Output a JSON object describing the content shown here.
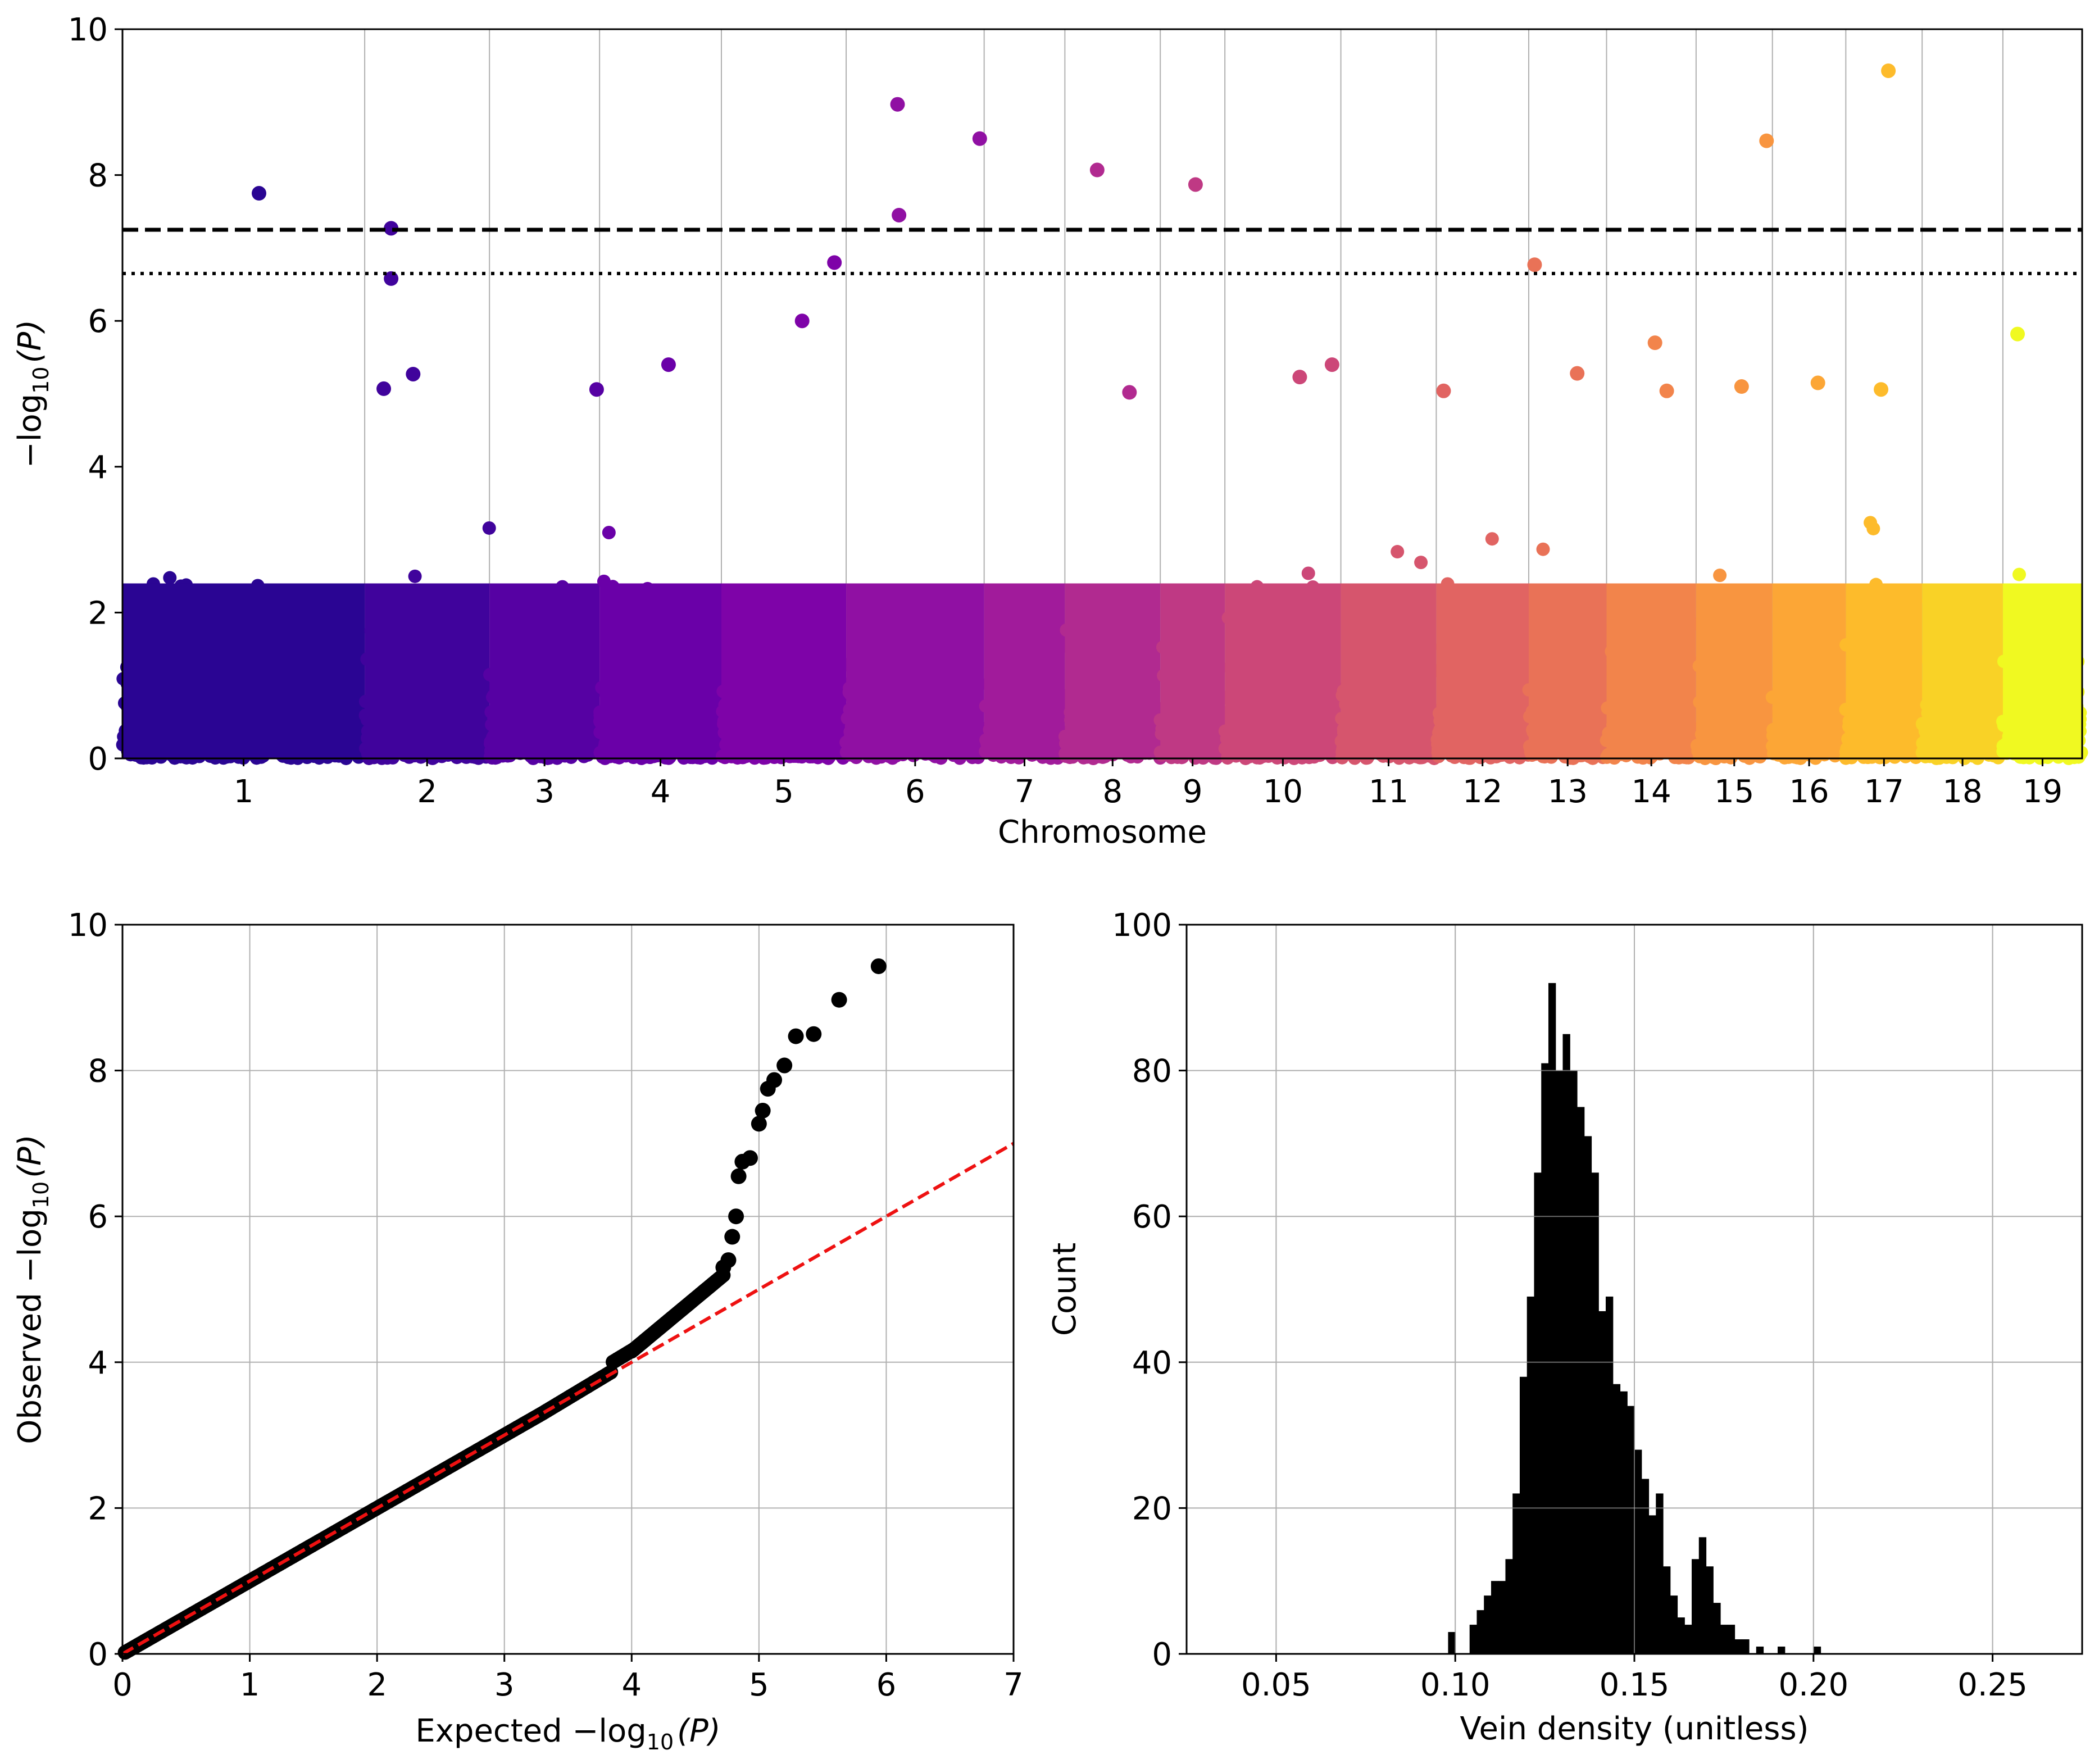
{
  "chart_data": [
    {
      "type": "scatter",
      "name": "manhattan",
      "xlabel": "Chromosome",
      "ylabel_main": "−log",
      "ylabel_sub": "10",
      "ylabel_tail": "(P)",
      "ylim": [
        0,
        10
      ],
      "yticks": [
        "0",
        "2",
        "4",
        "6",
        "8",
        "10"
      ],
      "grid": "vertical chromosome boundaries",
      "chromosomes": [
        {
          "label": "1",
          "start": 0,
          "end": 16.5,
          "color": "#2a0593"
        },
        {
          "label": "2",
          "start": 16.5,
          "end": 25,
          "color": "#40039c"
        },
        {
          "label": "3",
          "start": 25,
          "end": 32.5,
          "color": "#5601a3"
        },
        {
          "label": "4",
          "start": 32.5,
          "end": 40.8,
          "color": "#6a00a8"
        },
        {
          "label": "5",
          "start": 40.8,
          "end": 49.3,
          "color": "#7e03a8"
        },
        {
          "label": "6",
          "start": 49.3,
          "end": 58.7,
          "color": "#9010a3"
        },
        {
          "label": "7",
          "start": 58.7,
          "end": 64.2,
          "color": "#a11b9b"
        },
        {
          "label": "8",
          "start": 64.2,
          "end": 70.7,
          "color": "#b12a90"
        },
        {
          "label": "9",
          "start": 70.7,
          "end": 75.1,
          "color": "#bf3984"
        },
        {
          "label": "10",
          "start": 75.1,
          "end": 83,
          "color": "#cc4778"
        },
        {
          "label": "11",
          "start": 83,
          "end": 89.5,
          "color": "#d6556d"
        },
        {
          "label": "12",
          "start": 89.5,
          "end": 95.8,
          "color": "#e16462"
        },
        {
          "label": "13",
          "start": 95.8,
          "end": 101.1,
          "color": "#e97257"
        },
        {
          "label": "14",
          "start": 101.1,
          "end": 107.2,
          "color": "#f2844b"
        },
        {
          "label": "15",
          "start": 107.2,
          "end": 112.4,
          "color": "#f89540"
        },
        {
          "label": "16",
          "start": 112.4,
          "end": 117.4,
          "color": "#fca636"
        },
        {
          "label": "17",
          "start": 117.4,
          "end": 122.6,
          "color": "#fdbb2b"
        },
        {
          "label": "18",
          "start": 122.6,
          "end": 128.1,
          "color": "#f9d226"
        },
        {
          "label": "19",
          "start": 128.1,
          "end": 133.5,
          "color": "#f0f921"
        }
      ],
      "threshold_dashed": 7.25,
      "threshold_dotted": 6.65,
      "top_points": [
        {
          "x": 9.3,
          "y": 7.75
        },
        {
          "x": 18.3,
          "y": 7.27
        },
        {
          "x": 18.3,
          "y": 6.58
        },
        {
          "x": 48.5,
          "y": 6.8
        },
        {
          "x": 52.8,
          "y": 8.97
        },
        {
          "x": 52.9,
          "y": 7.45
        },
        {
          "x": 58.4,
          "y": 8.5
        },
        {
          "x": 66.4,
          "y": 8.07
        },
        {
          "x": 73.1,
          "y": 7.87
        },
        {
          "x": 96.2,
          "y": 6.77
        },
        {
          "x": 112,
          "y": 8.47
        },
        {
          "x": 120.3,
          "y": 9.43
        },
        {
          "x": 46.3,
          "y": 6.0
        },
        {
          "x": 129.1,
          "y": 5.82
        },
        {
          "x": 104.4,
          "y": 5.7
        },
        {
          "x": 37.2,
          "y": 5.4
        },
        {
          "x": 82.4,
          "y": 5.4
        },
        {
          "x": 80.2,
          "y": 5.23
        },
        {
          "x": 99.1,
          "y": 5.28
        },
        {
          "x": 19.8,
          "y": 5.27
        },
        {
          "x": 115.5,
          "y": 5.15
        },
        {
          "x": 110.3,
          "y": 5.1
        },
        {
          "x": 32.3,
          "y": 5.06
        },
        {
          "x": 17.8,
          "y": 5.07
        },
        {
          "x": 68.6,
          "y": 5.02
        },
        {
          "x": 90.0,
          "y": 5.04
        },
        {
          "x": 105.2,
          "y": 5.04
        },
        {
          "x": 119.8,
          "y": 5.06
        }
      ]
    },
    {
      "type": "scatter",
      "name": "qq-plot",
      "xlabel_main": "Expected −log",
      "xlabel_sub": "10",
      "xlabel_tail": "(P)",
      "ylabel_main": "Observed −log",
      "ylabel_sub": "10",
      "ylabel_tail": "(P)",
      "xlim": [
        0,
        7
      ],
      "ylim": [
        0,
        10
      ],
      "xticks": [
        "0",
        "1",
        "2",
        "3",
        "4",
        "5",
        "6",
        "7"
      ],
      "yticks": [
        "0",
        "2",
        "4",
        "6",
        "8",
        "10"
      ],
      "grid": true,
      "reference_line": {
        "style": "dashed",
        "color": "#ee1111",
        "from": [
          0,
          0
        ],
        "to": [
          7,
          7
        ]
      },
      "tail_points": [
        [
          4.72,
          5.3
        ],
        [
          4.76,
          5.4
        ],
        [
          4.79,
          5.72
        ],
        [
          4.82,
          6.0
        ],
        [
          4.84,
          6.55
        ],
        [
          4.87,
          6.75
        ],
        [
          4.93,
          6.8
        ],
        [
          5.0,
          7.27
        ],
        [
          5.03,
          7.45
        ],
        [
          5.07,
          7.75
        ],
        [
          5.12,
          7.87
        ],
        [
          5.2,
          8.07
        ],
        [
          5.29,
          8.47
        ],
        [
          5.43,
          8.5
        ],
        [
          5.63,
          8.97
        ],
        [
          5.94,
          9.43
        ]
      ]
    },
    {
      "type": "bar",
      "name": "histogram",
      "xlabel": "Vein density (unitless)",
      "ylabel": "Count",
      "xlim": [
        0.025,
        0.275
      ],
      "ylim": [
        0,
        100
      ],
      "xticks": [
        "0.05",
        "0.10",
        "0.15",
        "0.20",
        "0.25"
      ],
      "yticks": [
        "0",
        "20",
        "40",
        "60",
        "80",
        "100"
      ],
      "grid": true,
      "bin_start": 0.098,
      "bin_width": 0.002,
      "counts": [
        3,
        0,
        0,
        4,
        6,
        8,
        10,
        10,
        13,
        22,
        38,
        49,
        66,
        81,
        92,
        80,
        85,
        80,
        75,
        71,
        66,
        47,
        49,
        37,
        36,
        34,
        28,
        24,
        19,
        22,
        12,
        8,
        5,
        4,
        13,
        16,
        12,
        7,
        4,
        4,
        2,
        2,
        0,
        1,
        0,
        0,
        1,
        0,
        0,
        0,
        0,
        1
      ],
      "bar_color": "#000000"
    }
  ]
}
